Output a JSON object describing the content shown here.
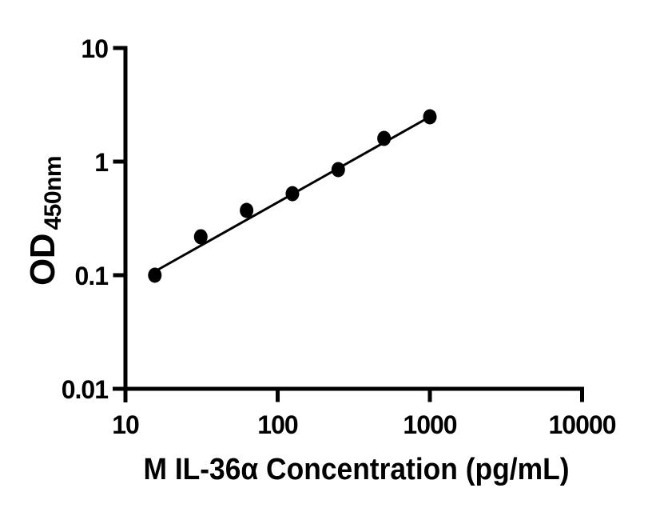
{
  "chart_data": {
    "type": "scatter",
    "title": "",
    "xlabel": "M IL-36α Concentration (pg/mL)",
    "ylabel_main": "OD",
    "ylabel_subscript": "450nm",
    "x_scale": "log10",
    "y_scale": "log10",
    "xlim": [
      10,
      10000
    ],
    "ylim": [
      0.01,
      10
    ],
    "x_tick_labels": [
      "10",
      "100",
      "1000",
      "10000"
    ],
    "y_tick_labels": [
      "10",
      "1",
      "0.1",
      "0.01"
    ],
    "grid": false,
    "legend": false,
    "series": [
      {
        "marker": "filled-circle",
        "color": "#000000",
        "points": [
          {
            "x": 15.6,
            "y": 0.1
          },
          {
            "x": 31.25,
            "y": 0.218
          },
          {
            "x": 62.5,
            "y": 0.372
          },
          {
            "x": 125,
            "y": 0.522
          },
          {
            "x": 250,
            "y": 0.85
          },
          {
            "x": 500,
            "y": 1.6
          },
          {
            "x": 1000,
            "y": 2.48
          }
        ]
      }
    ],
    "trend_line": {
      "x1": 16,
      "y1": 0.11,
      "x2": 1000,
      "y2": 2.48
    },
    "colors": {
      "foreground": "#000000",
      "background": "#ffffff"
    }
  }
}
